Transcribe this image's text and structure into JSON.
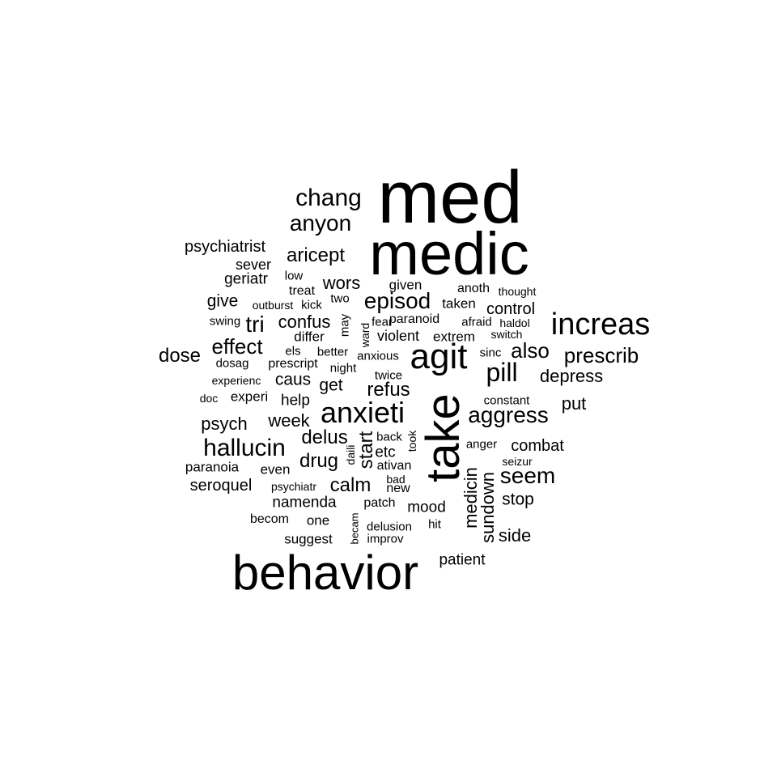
{
  "colors": {
    "background": "#ffffff",
    "text": "#000000"
  },
  "words": [
    {
      "text": "med"
    },
    {
      "text": "medic"
    },
    {
      "text": "behavior"
    },
    {
      "text": "take"
    },
    {
      "text": "agit"
    },
    {
      "text": "increas"
    },
    {
      "text": "anxieti"
    },
    {
      "text": "chang"
    },
    {
      "text": "anyon"
    },
    {
      "text": "hallucin"
    },
    {
      "text": "aggress"
    },
    {
      "text": "episod"
    },
    {
      "text": "pill"
    },
    {
      "text": "seem"
    },
    {
      "text": "prescrib"
    },
    {
      "text": "aricept"
    },
    {
      "text": "psychiatrist"
    },
    {
      "text": "sever"
    },
    {
      "text": "geriatr"
    },
    {
      "text": "low"
    },
    {
      "text": "treat"
    },
    {
      "text": "wors"
    },
    {
      "text": "given"
    },
    {
      "text": "anoth"
    },
    {
      "text": "thought"
    },
    {
      "text": "give"
    },
    {
      "text": "outburst"
    },
    {
      "text": "kick"
    },
    {
      "text": "two"
    },
    {
      "text": "taken"
    },
    {
      "text": "control"
    },
    {
      "text": "swing"
    },
    {
      "text": "tri"
    },
    {
      "text": "confus"
    },
    {
      "text": "fear"
    },
    {
      "text": "paranoid"
    },
    {
      "text": "afraid"
    },
    {
      "text": "haldol"
    },
    {
      "text": "differ"
    },
    {
      "text": "violent"
    },
    {
      "text": "extrem"
    },
    {
      "text": "switch"
    },
    {
      "text": "effect"
    },
    {
      "text": "dose"
    },
    {
      "text": "els"
    },
    {
      "text": "better"
    },
    {
      "text": "anxious"
    },
    {
      "text": "sinc"
    },
    {
      "text": "also"
    },
    {
      "text": "dosag"
    },
    {
      "text": "prescript"
    },
    {
      "text": "night"
    },
    {
      "text": "twice"
    },
    {
      "text": "depress"
    },
    {
      "text": "experienc"
    },
    {
      "text": "caus"
    },
    {
      "text": "get"
    },
    {
      "text": "refus"
    },
    {
      "text": "doc"
    },
    {
      "text": "experi"
    },
    {
      "text": "help"
    },
    {
      "text": "constant"
    },
    {
      "text": "put"
    },
    {
      "text": "psych"
    },
    {
      "text": "week"
    },
    {
      "text": "delus"
    },
    {
      "text": "back"
    },
    {
      "text": "anger"
    },
    {
      "text": "combat"
    },
    {
      "text": "etc"
    },
    {
      "text": "drug"
    },
    {
      "text": "seizur"
    },
    {
      "text": "paranoia"
    },
    {
      "text": "even"
    },
    {
      "text": "ativan"
    },
    {
      "text": "bad"
    },
    {
      "text": "seroquel"
    },
    {
      "text": "psychiatr"
    },
    {
      "text": "calm"
    },
    {
      "text": "new"
    },
    {
      "text": "stop"
    },
    {
      "text": "namenda"
    },
    {
      "text": "patch"
    },
    {
      "text": "mood"
    },
    {
      "text": "becom"
    },
    {
      "text": "one"
    },
    {
      "text": "delusion"
    },
    {
      "text": "hit"
    },
    {
      "text": "suggest"
    },
    {
      "text": "improv"
    },
    {
      "text": "side"
    },
    {
      "text": "patient"
    },
    {
      "text": "start"
    },
    {
      "text": "medicin"
    },
    {
      "text": "sundown"
    },
    {
      "text": "may"
    },
    {
      "text": "ward"
    },
    {
      "text": "took"
    },
    {
      "text": "daili"
    },
    {
      "text": "becam"
    }
  ]
}
